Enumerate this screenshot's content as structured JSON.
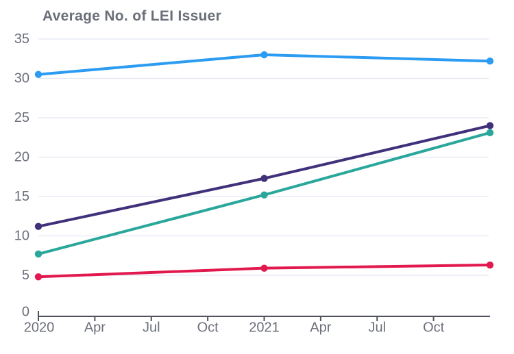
{
  "chart_data": {
    "type": "line",
    "title": "Average No. of LEI Issuer",
    "xlabel": "",
    "ylabel": "",
    "x_tick_labels": [
      "2020",
      "Apr",
      "Jul",
      "Oct",
      "2021",
      "Apr",
      "Jul",
      "Oct"
    ],
    "x_axis_note": "quarterly ticks from Jan 2020; axis extends one unlabeled quarter past Oct 2021",
    "x_range_quarters": [
      0,
      8
    ],
    "y_ticks": [
      0,
      5,
      10,
      15,
      20,
      25,
      30,
      35
    ],
    "ylim": [
      0,
      35
    ],
    "grid": "horizontal-only",
    "legend_position": "none",
    "marker": "filled-circle",
    "series": [
      {
        "name": "blue-line",
        "color": "#2b9cf2",
        "x_quarters": [
          0,
          4,
          8
        ],
        "values": [
          30.5,
          33.0,
          32.2
        ]
      },
      {
        "name": "purple-line",
        "color": "#41317a",
        "x_quarters": [
          0,
          4,
          8
        ],
        "values": [
          11.2,
          17.3,
          24.0
        ]
      },
      {
        "name": "teal-line",
        "color": "#2aa79b",
        "x_quarters": [
          0,
          4,
          8
        ],
        "values": [
          7.7,
          15.2,
          23.1
        ]
      },
      {
        "name": "red-line",
        "color": "#e2194f",
        "x_quarters": [
          0,
          4,
          8
        ],
        "values": [
          4.8,
          5.9,
          6.3
        ]
      }
    ],
    "colors": {
      "background": "#ffffff",
      "title_text": "#6a6e78",
      "tick_label_text": "#6b6f79",
      "gridline": "#e2e7f2",
      "axis_line": "#50535c"
    }
  }
}
